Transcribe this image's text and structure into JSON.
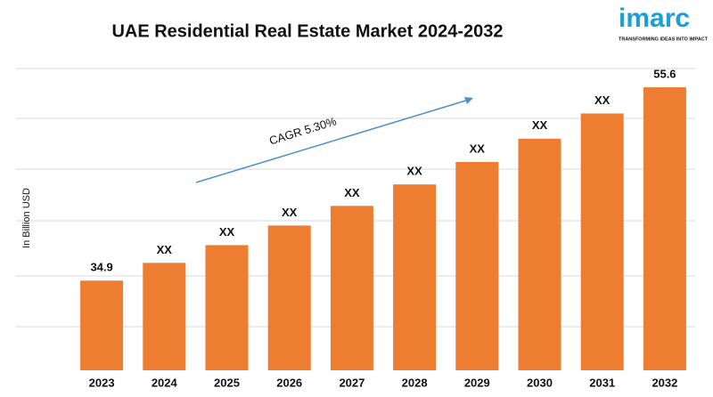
{
  "chart_data": {
    "type": "bar",
    "title": "UAE Residential Real Estate Market 2024-2032",
    "y_label": "In Billion USD",
    "annotation": "CAGR 5.30%",
    "logo": {
      "name": "imarc",
      "tagline": "TRANSFORMING IDEAS INTO IMPACT"
    },
    "categories": [
      "2023",
      "2024",
      "2025",
      "2026",
      "2027",
      "2028",
      "2029",
      "2030",
      "2031",
      "2032"
    ],
    "values": [
      34.9,
      36.8,
      38.7,
      40.8,
      42.9,
      45.2,
      47.6,
      50.1,
      52.8,
      55.6
    ],
    "value_labels": [
      "34.9",
      "XX",
      "XX",
      "XX",
      "XX",
      "XX",
      "XX",
      "XX",
      "XX",
      "55.6"
    ],
    "color": "#ed7d31",
    "ylim": [
      25.3,
      57.8
    ]
  }
}
